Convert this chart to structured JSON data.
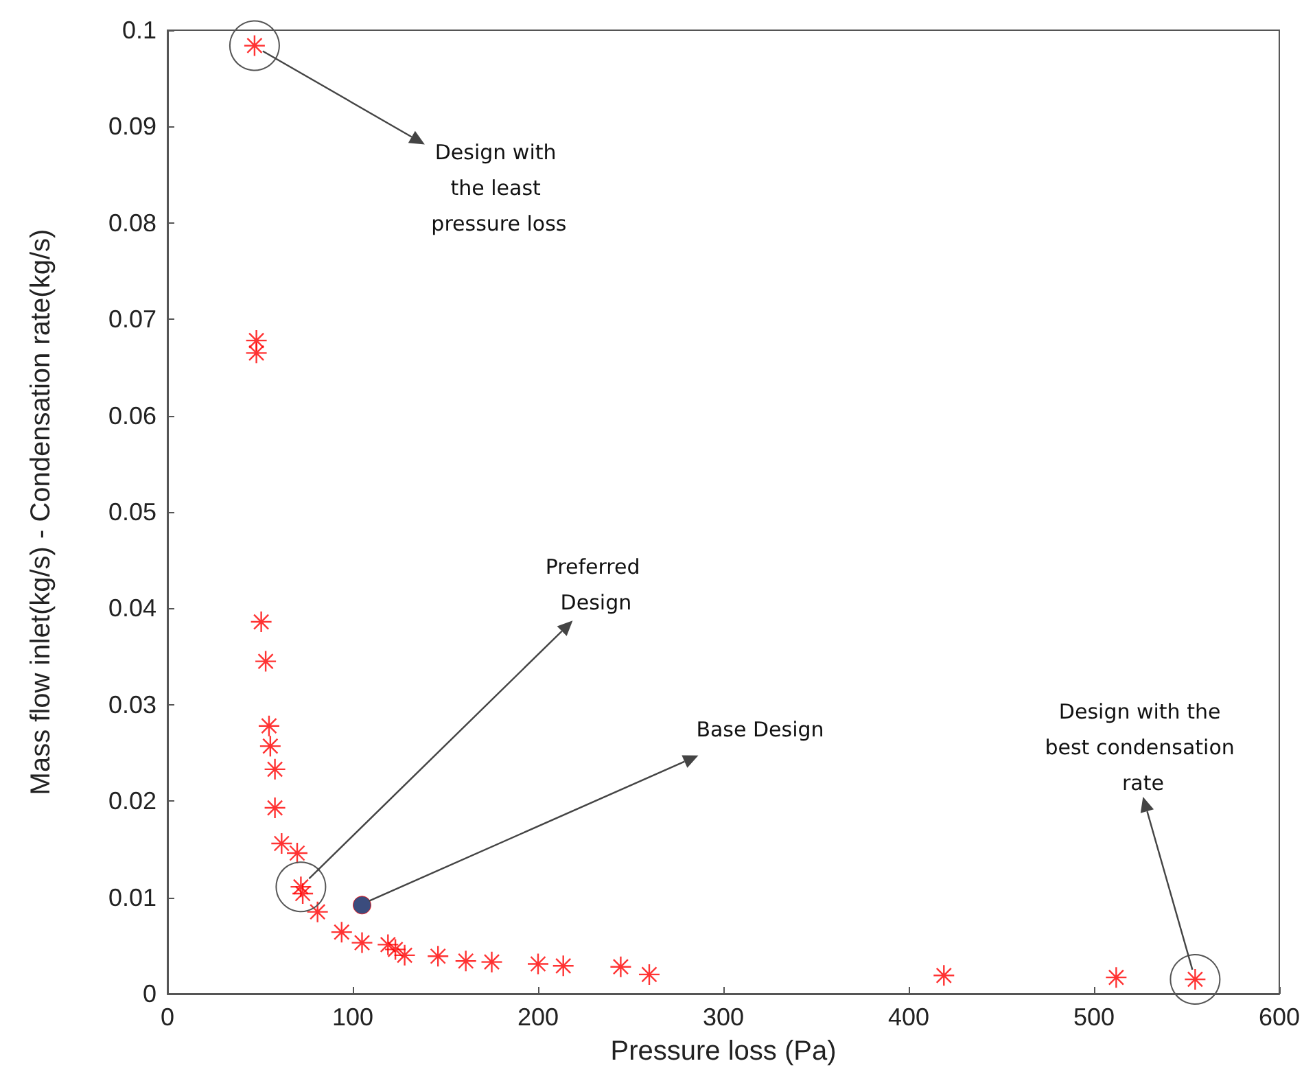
{
  "chart_data": {
    "type": "scatter",
    "xlabel": "Pressure loss (Pa)",
    "ylabel": "Mass flow inlet(kg/s) - Condensation rate(kg/s)",
    "xlim": [
      0,
      600
    ],
    "xticks": [
      0,
      100,
      200,
      300,
      400,
      500,
      600
    ],
    "ylim": [
      0,
      0.1
    ],
    "yticks": [
      0,
      0.01,
      0.02,
      0.03,
      0.04,
      0.05,
      0.06,
      0.07,
      0.08,
      0.09,
      0.1
    ],
    "grid": false,
    "series": [
      {
        "marker": "cross",
        "color": "#ff0000",
        "x": [
          47,
          48,
          48,
          50.6,
          53,
          54.8,
          55.5,
          58,
          58,
          61.6,
          70,
          72,
          73,
          81,
          94,
          105,
          119,
          123,
          128,
          146,
          161,
          175,
          200,
          213.6,
          244.6,
          260,
          419,
          512,
          554.6
        ],
        "values": [
          0.0984,
          0.0678,
          0.0665,
          0.0386,
          0.0345,
          0.0278,
          0.0257,
          0.0233,
          0.0193,
          0.0156,
          0.0146,
          0.0111,
          0.0104,
          0.0085,
          0.0064,
          0.0053,
          0.0051,
          0.0046,
          0.004,
          0.0039,
          0.0034,
          0.0033,
          0.0031,
          0.0029,
          0.0028,
          0.002,
          0.0019,
          0.0017,
          0.0015
        ]
      },
      {
        "marker": "circle",
        "color": "#0a1f5c",
        "x": [
          105
        ],
        "values": [
          0.0092
        ]
      }
    ],
    "annotations": [
      {
        "text": "Design with the least pressure loss",
        "x": 47,
        "y": 0.0984
      },
      {
        "text": "Preferred Design",
        "x": 72,
        "y": 0.0111
      },
      {
        "text": "Base Design",
        "x": 105,
        "y": 0.0092
      },
      {
        "text": "Design with the best condensation rate",
        "x": 554.6,
        "y": 0.0015
      }
    ]
  }
}
